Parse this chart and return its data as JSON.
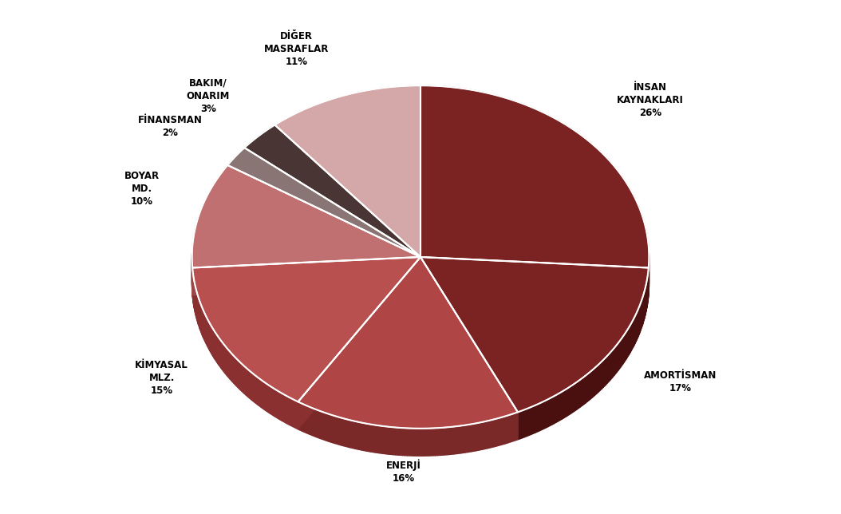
{
  "labels": [
    "İNSAN\nKAYNAKLARI\n26%",
    "AMORTİSMAN\n17%",
    "ENERJİ\n16%",
    "KİMYASAL\nMLZ.\n15%",
    "BOYAR\nMD.\n10%",
    "FİNANSMAN\n2%",
    "BAKIM/\nONARIM\n3%",
    "DİĞER\nMASRAFLAR\n11%"
  ],
  "values": [
    26,
    17,
    16,
    15,
    10,
    2,
    3,
    11
  ],
  "colors": [
    "#7B2323",
    "#7B2323",
    "#B04545",
    "#B85050",
    "#C07070",
    "#8A7575",
    "#4A3535",
    "#D4A8A8"
  ],
  "dark_colors": [
    "#4A1010",
    "#4A1010",
    "#7A2828",
    "#8A3030",
    "#9A4848",
    "#5A4545",
    "#2A1A1A",
    "#A07878"
  ],
  "startangle": 90,
  "background_color": "#FFFFFF",
  "label_positions": [
    [
      1.18,
      0.55,
      "left",
      "center"
    ],
    [
      1.18,
      -0.25,
      "left",
      "center"
    ],
    [
      0.0,
      -1.35,
      "center",
      "top"
    ],
    [
      -1.18,
      -0.45,
      "right",
      "center"
    ],
    [
      -1.18,
      0.3,
      "right",
      "center"
    ],
    [
      -1.18,
      0.62,
      "right",
      "center"
    ],
    [
      -0.85,
      0.82,
      "right",
      "center"
    ],
    [
      -0.3,
      1.05,
      "right",
      "center"
    ]
  ]
}
